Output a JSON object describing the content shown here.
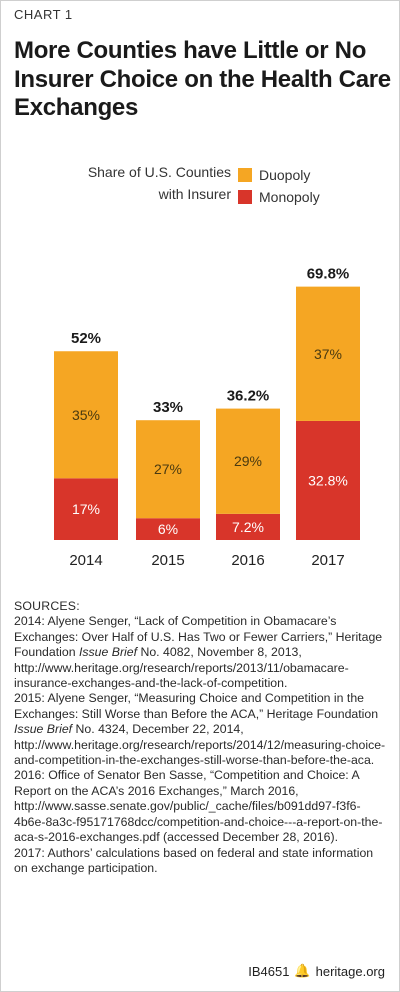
{
  "header": {
    "chart_label": "CHART 1",
    "title": "More Counties have Little or No Insurer Choice on the Health Care Exchanges"
  },
  "legend": {
    "title_line1": "Share of U.S. Counties",
    "title_line2": "with Insurer",
    "items": [
      {
        "label": "Duopoly",
        "color": "#f5a623"
      },
      {
        "label": "Monopoly",
        "color": "#d8352a"
      }
    ]
  },
  "chart_data": {
    "type": "bar",
    "stacked": true,
    "categories": [
      "2014",
      "2015",
      "2016",
      "2017"
    ],
    "series": [
      {
        "name": "Monopoly",
        "color": "#d8352a",
        "values": [
          17,
          6,
          7.2,
          32.8
        ],
        "labels": [
          "17%",
          "6%",
          "7.2%",
          "32.8%"
        ]
      },
      {
        "name": "Duopoly",
        "color": "#f5a623",
        "values": [
          35,
          27,
          29,
          37
        ],
        "labels": [
          "35%",
          "27%",
          "29%",
          "37%"
        ]
      }
    ],
    "totals": [
      52,
      33,
      36.2,
      69.8
    ],
    "total_labels": [
      "52%",
      "33%",
      "36.2%",
      "69.8%"
    ],
    "ylim": [
      0,
      70
    ],
    "xlabel": "",
    "ylabel": ""
  },
  "sources": {
    "heading": "SOURCES:",
    "lines": [
      {
        "pre": "2014: Alyene Senger, “Lack of Competition in Obamacare’s Exchanges: Over Half of U.S. Has Two or Fewer Carriers,” Heritage Foundation ",
        "em": "Issue Brief",
        "post": " No. 4082, November 8, 2013, http://www.heritage.org/research/reports/2013/11/obamacare-insurance-exchanges-and-the-lack-of-competition."
      },
      {
        "pre": "2015: Alyene Senger, “Measuring Choice and Competition in the Exchanges: Still Worse than Before the ACA,” Heritage Foundation ",
        "em": "Issue Brief",
        "post": " No. 4324, December 22, 2014, http://www.heritage.org/research/reports/2014/12/measuring-choice-and-competition-in-the-exchanges-still-worse-than-before-the-aca."
      },
      {
        "pre": "2016: Office of Senator Ben Sasse, “Competition and Choice: A Report on the ACA’s 2016 Exchanges,” March 2016, http://www.sasse.senate.gov/public/_cache/files/b091dd97-f3f6-4b6e-8a3c-f95171768dcc/competition-and-choice---a-report-on-the-aca-s-2016-exchanges.pdf (accessed December 28, 2016).",
        "em": "",
        "post": ""
      },
      {
        "pre": "2017: Authors’ calculations based on federal and state information on exchange participation.",
        "em": "",
        "post": ""
      }
    ]
  },
  "footer": {
    "code": "IB4651",
    "icon": "liberty-bell-icon",
    "site": "heritage.org"
  }
}
